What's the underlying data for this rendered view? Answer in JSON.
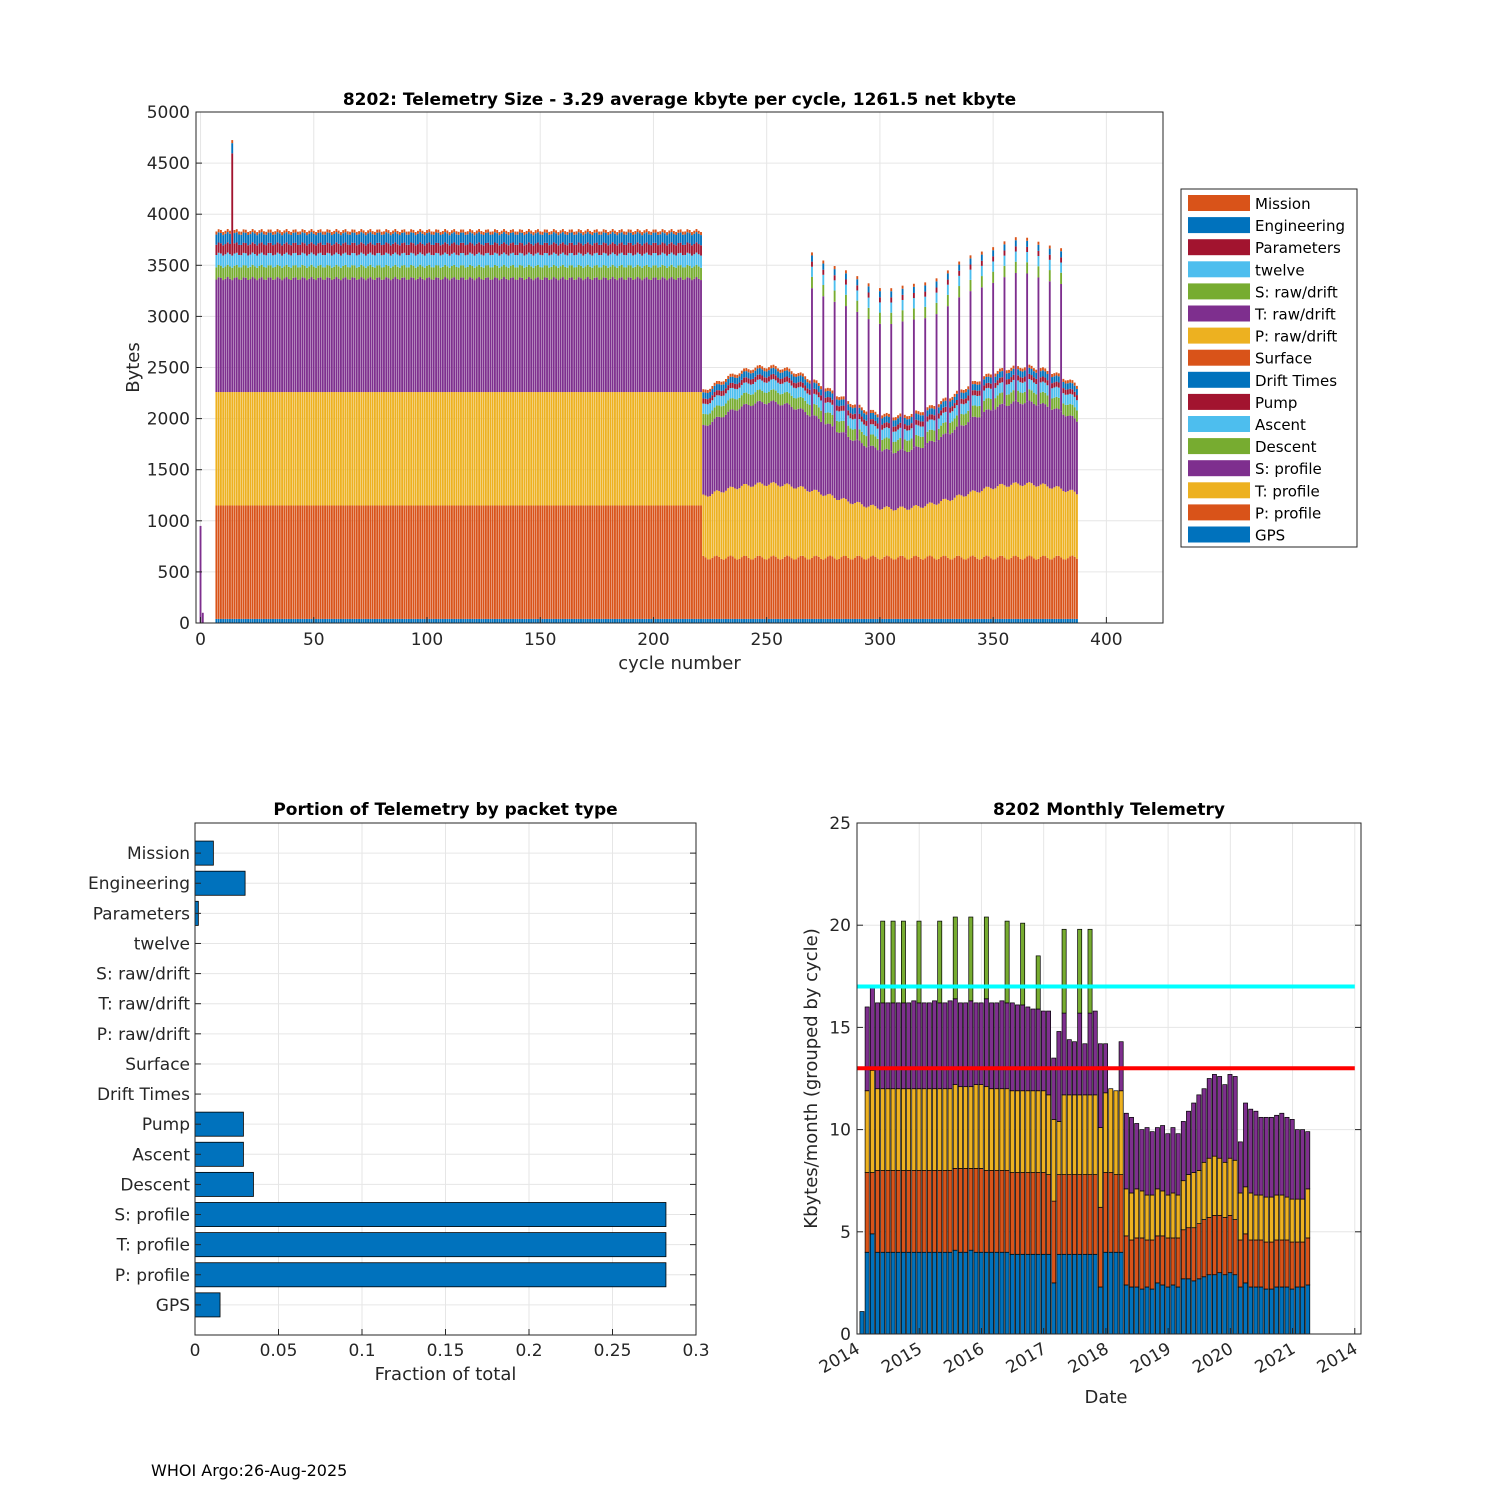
{
  "footer": "WHOI Argo:26-Aug-2025",
  "colors": {
    "mission": "#d95319",
    "engineering": "#0072bd",
    "parameters": "#a2142f",
    "twelve": "#4dbeee",
    "s_raw": "#77ac30",
    "t_raw": "#7e2f8e",
    "p_raw": "#edb120",
    "surface": "#d95319",
    "drift": "#0072bd",
    "pump": "#a2142f",
    "ascent": "#4dbeee",
    "descent": "#77ac30",
    "s_profile": "#7e2f8e",
    "t_profile": "#edb120",
    "p_profile": "#d95319",
    "gps": "#0072bd",
    "cyan_line": "#00ffff",
    "red_line": "#ff0000",
    "grid": "#e6e6e6",
    "axis": "#262626"
  },
  "chart_data": [
    {
      "id": "telemetry-size",
      "type": "bar",
      "stacked": true,
      "title": "8202: Telemetry Size - 3.29 average kbyte per cycle, 1261.5 net kbyte",
      "xlabel": "cycle number",
      "ylabel": "Bytes",
      "xlim": [
        -2,
        425
      ],
      "ylim": [
        0,
        5000
      ],
      "xticks": [
        "0",
        "50",
        "100",
        "150",
        "200",
        "250",
        "300",
        "350",
        "400"
      ],
      "yticks": [
        "0",
        "500",
        "1000",
        "1500",
        "2000",
        "2500",
        "3000",
        "3500",
        "4000",
        "4500",
        "5000"
      ],
      "grid": true,
      "legend_position": "right",
      "legend": [
        "Mission",
        "Engineering",
        "Parameters",
        "twelve",
        "S: raw/drift",
        "T: raw/drift",
        "P: raw/drift",
        "Surface",
        "Drift Times",
        "Pump",
        "Ascent",
        "Descent",
        "S: profile",
        "T: profile",
        "P: profile",
        "GPS"
      ],
      "segment_order": [
        "GPS",
        "P: profile",
        "T: profile",
        "S: profile",
        "Descent",
        "Ascent",
        "Pump",
        "Drift Times",
        "Surface",
        "P: raw/drift",
        "T: raw/drift",
        "S: raw/drift",
        "twelve",
        "Parameters",
        "Engineering",
        "Mission"
      ],
      "phases": [
        {
          "cycles": [
            7,
            221
          ],
          "gps": 40,
          "p_profile": 1110,
          "t_profile": 1110,
          "s_profile": 1110,
          "descent": 120,
          "ascent": 120,
          "pump": 100,
          "engineering": 100,
          "mission": 30,
          "total_approx": 3840
        },
        {
          "cycles": [
            222,
            387
          ],
          "gps": 40,
          "p_profile": 600,
          "t_profile": 600,
          "s_profile": 680,
          "descent": 110,
          "ascent": 100,
          "pump": 50,
          "engineering": 60,
          "mission": 30,
          "total_approx": 2250,
          "periodic_peak_approx": 3600
        }
      ],
      "notable": {
        "cycle": 14,
        "total_approx": 4800
      }
    },
    {
      "id": "portion-by-type",
      "type": "bar",
      "orientation": "horizontal",
      "title": "Portion of Telemetry by packet type",
      "xlabel": "Fraction of total",
      "ylabel": "",
      "xlim": [
        0,
        0.3
      ],
      "xticks": [
        "0",
        "0.05",
        "0.1",
        "0.15",
        "0.2",
        "0.25",
        "0.3"
      ],
      "grid": true,
      "categories": [
        "Mission",
        "Engineering",
        "Parameters",
        "twelve",
        "S: raw/drift",
        "T: raw/drift",
        "P: raw/drift",
        "Surface",
        "Drift Times",
        "Pump",
        "Ascent",
        "Descent",
        "S: profile",
        "T: profile",
        "P: profile",
        "GPS"
      ],
      "values": [
        0.011,
        0.03,
        0.002,
        0,
        0,
        0,
        0,
        0,
        0,
        0.029,
        0.029,
        0.035,
        0.282,
        0.282,
        0.282,
        0.015
      ]
    },
    {
      "id": "monthly-telemetry",
      "type": "bar",
      "stacked": true,
      "title": "8202 Monthly Telemetry",
      "xlabel": "Date",
      "ylabel": "Kbytes/month (grouped by cycle)",
      "ylim": [
        0,
        25
      ],
      "yticks": [
        "0",
        "5",
        "10",
        "15",
        "20",
        "25"
      ],
      "xticks": [
        "2014",
        "2015",
        "2016",
        "2017",
        "2018",
        "2019",
        "2020",
        "2021",
        "2014"
      ],
      "xtick_positions": [
        2014.0,
        2015.0,
        2016.0,
        2017.0,
        2018.0,
        2019.0,
        2020.0,
        2021.0,
        2022.0
      ],
      "xlim": [
        2014.0,
        2022.1
      ],
      "grid": true,
      "hlines": [
        {
          "y": 17,
          "color": "cyan"
        },
        {
          "y": 13,
          "color": "red"
        }
      ],
      "month_step": 0.0833,
      "start": 2014.08,
      "totals": [
        1.1,
        16.0,
        17.0,
        16.2,
        20.2,
        16.2,
        20.2,
        16.2,
        20.2,
        16.2,
        16.3,
        20.2,
        16.2,
        16.2,
        16.3,
        20.2,
        16.2,
        16.3,
        20.4,
        16.2,
        16.2,
        20.3,
        16.2,
        16.2,
        20.4,
        16.2,
        16.2,
        16.3,
        20.2,
        16.2,
        16.1,
        20.1,
        16.0,
        15.9,
        18.5,
        15.8,
        15.8,
        13.5,
        15.4,
        19.8,
        14.5,
        14.4,
        19.8,
        14.3,
        19.8,
        15.9,
        15.9,
        12.3,
        12.0,
        12.0,
        14.3,
        10.8,
        10.6,
        10.3,
        10.0,
        10.1,
        9.9,
        10.1,
        10.2,
        9.8,
        10.1,
        9.8,
        10.4,
        10.9,
        11.3,
        11.7,
        12.0,
        12.5,
        12.7,
        12.6,
        12.2,
        12.7,
        12.6,
        9.4,
        11.3,
        11.0,
        10.9,
        10.6,
        10.6,
        10.6,
        10.7,
        10.8,
        10.6,
        10.5,
        10.0,
        10.0,
        9.9
      ],
      "segments": {
        "blue": [
          1.1,
          4.0,
          4.9,
          4.0,
          4.0,
          4.0,
          4.0,
          4.0,
          4.0,
          4.0,
          4.0,
          4.0,
          4.0,
          4.0,
          4.0,
          4.0,
          4.0,
          4.0,
          4.1,
          4.0,
          4.0,
          4.1,
          4.0,
          4.0,
          4.0,
          4.0,
          4.0,
          4.0,
          4.0,
          3.9,
          3.9,
          3.9,
          3.9,
          3.9,
          3.9,
          3.9,
          3.9,
          2.5,
          3.9,
          3.9,
          3.9,
          3.9,
          3.9,
          3.9,
          3.9,
          3.9,
          2.3,
          4.0,
          4.0,
          4.0,
          4.0,
          2.4,
          2.3,
          2.3,
          2.2,
          2.3,
          2.2,
          2.5,
          2.4,
          2.3,
          2.4,
          2.3,
          2.7,
          2.7,
          2.6,
          2.7,
          2.8,
          2.9,
          2.9,
          3.0,
          2.9,
          3.0,
          2.9,
          2.3,
          2.5,
          2.3,
          2.3,
          2.3,
          2.2,
          2.2,
          2.3,
          2.3,
          2.3,
          2.2,
          2.3,
          2.3,
          2.4
        ],
        "orange": [
          0,
          3.9,
          3.0,
          4.0,
          4.0,
          4.0,
          4.0,
          4.0,
          4.0,
          4.0,
          4.0,
          4.0,
          4.0,
          4.0,
          4.0,
          4.0,
          4.0,
          4.0,
          4.0,
          4.1,
          4.1,
          4.0,
          4.1,
          4.1,
          4.0,
          4.0,
          4.0,
          4.0,
          4.0,
          4.0,
          4.0,
          4.0,
          4.0,
          4.0,
          4.0,
          4.0,
          3.9,
          4.0,
          3.9,
          3.9,
          3.9,
          3.9,
          3.9,
          3.9,
          3.9,
          3.9,
          3.9,
          3.9,
          3.9,
          3.8,
          3.8,
          2.4,
          2.3,
          2.4,
          2.5,
          2.3,
          2.4,
          2.3,
          2.4,
          2.4,
          2.3,
          2.4,
          2.4,
          2.5,
          2.6,
          2.7,
          2.8,
          2.8,
          2.9,
          2.8,
          2.8,
          2.8,
          2.7,
          2.3,
          2.4,
          2.3,
          2.3,
          2.3,
          2.3,
          2.3,
          2.3,
          2.3,
          2.3,
          2.3,
          2.2,
          2.2,
          2.3
        ],
        "yellow": [
          0,
          4.0,
          5.0,
          4.0,
          4.0,
          4.0,
          4.0,
          4.0,
          4.0,
          4.0,
          4.0,
          4.0,
          4.0,
          4.0,
          4.0,
          4.0,
          4.0,
          4.0,
          4.1,
          4.0,
          4.0,
          4.0,
          4.1,
          4.1,
          4.1,
          4.0,
          4.0,
          4.0,
          4.0,
          4.0,
          4.0,
          4.0,
          4.0,
          4.0,
          4.0,
          4.0,
          3.9,
          4.0,
          2.6,
          3.9,
          3.9,
          3.9,
          3.9,
          3.9,
          3.9,
          3.9,
          3.9,
          3.9,
          4.1,
          4.1,
          4.1,
          2.3,
          2.3,
          2.4,
          2.3,
          2.2,
          2.2,
          2.3,
          2.2,
          2.1,
          2.2,
          2.1,
          2.4,
          2.6,
          2.7,
          2.6,
          2.8,
          2.9,
          2.9,
          2.8,
          2.7,
          2.8,
          2.9,
          2.3,
          2.3,
          2.3,
          2.2,
          2.2,
          2.2,
          2.2,
          2.2,
          2.2,
          2.1,
          2.1,
          2.1,
          2.1,
          2.4
        ],
        "purple": [
          0,
          4.1,
          4.1,
          4.2,
          4.2,
          4.2,
          4.2,
          4.2,
          4.2,
          4.2,
          4.3,
          4.2,
          4.2,
          4.2,
          4.3,
          4.2,
          4.2,
          4.3,
          4.2,
          4.1,
          4.1,
          4.2,
          4.0,
          4.0,
          4.3,
          4.2,
          4.2,
          4.3,
          4.2,
          4.3,
          4.2,
          4.2,
          4.1,
          4.0,
          4.0,
          3.9,
          4.1,
          3.0,
          4.4,
          4.0,
          2.7,
          2.6,
          4.0,
          2.5,
          4.0,
          4.1,
          4.1,
          2.4,
          0,
          0,
          2.4,
          3.7,
          3.7,
          3.2,
          3.0,
          3.3,
          3.1,
          3.0,
          3.2,
          3.0,
          3.2,
          3.0,
          2.9,
          3.1,
          3.4,
          3.7,
          3.6,
          3.9,
          4.0,
          4.0,
          3.8,
          4.1,
          4.1,
          2.5,
          4.1,
          4.1,
          4.1,
          3.8,
          3.9,
          3.9,
          3.9,
          4.0,
          3.9,
          3.9,
          3.4,
          3.4,
          2.8
        ],
        "green": [
          0,
          0,
          0,
          0,
          4.0,
          0,
          4.0,
          0,
          4.0,
          0,
          0,
          4.0,
          0,
          0,
          0,
          4.0,
          0,
          0,
          4.0,
          0,
          0,
          4.1,
          0,
          0,
          4.0,
          0,
          0,
          0,
          4.0,
          0,
          0,
          4.0,
          0,
          0,
          2.6,
          0,
          0,
          0,
          0,
          4.1,
          0,
          0,
          4.1,
          0,
          4.1,
          0,
          0,
          0,
          0,
          0,
          0,
          0,
          0,
          0,
          0,
          0,
          0,
          0,
          0,
          0,
          0,
          0,
          0,
          0,
          0,
          0,
          0,
          0,
          0,
          0,
          0,
          0,
          0,
          0,
          0,
          0,
          0,
          0,
          0,
          0,
          0,
          0,
          0,
          0,
          0,
          0,
          0
        ]
      }
    }
  ]
}
